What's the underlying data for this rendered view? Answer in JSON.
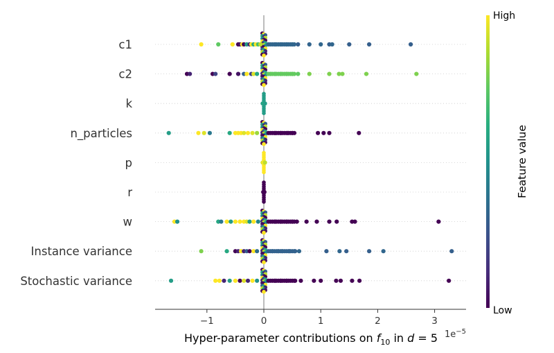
{
  "chart_data": {
    "type": "scatter",
    "subtype": "shap-beeswarm",
    "title": "",
    "xlabel": "Hyper-parameter contributions on f_10 in d = 5",
    "xlabel_parts": {
      "prefix": "Hyper-parameter contributions on ",
      "f": "f",
      "f_sub": "10",
      "mid": " in ",
      "d": "d",
      "eq": " = ",
      "val": "5"
    },
    "x_exponent_label": "1e−5",
    "x_exponent": {
      "base": "1e",
      "power": "−5"
    },
    "xlim": [
      -1.9,
      3.55
    ],
    "xticks": [
      -1,
      0,
      1,
      2,
      3
    ],
    "xtick_labels": [
      "−1",
      "0",
      "1",
      "2",
      "3"
    ],
    "features": [
      "c1",
      "c2",
      "k",
      "n_particles",
      "p",
      "r",
      "w",
      "Instance variance",
      "Stochastic variance"
    ],
    "colorbar": {
      "title": "Feature value",
      "high_label": "High",
      "low_label": "Low",
      "colormap": "viridis"
    },
    "series": [
      {
        "name": "c1",
        "points": [
          [
            -1.1,
            1.0
          ],
          [
            -0.8,
            0.75
          ],
          [
            -0.55,
            1.0
          ],
          [
            -0.45,
            0.0
          ],
          [
            -0.42,
            0.05
          ],
          [
            -0.38,
            1.0
          ],
          [
            -0.35,
            0.0
          ],
          [
            -0.3,
            0.55
          ],
          [
            -0.25,
            0.1
          ],
          [
            -0.22,
            1.0
          ],
          [
            -0.18,
            0.6
          ],
          [
            -0.14,
            1.0
          ],
          [
            -0.1,
            0.7
          ],
          [
            -0.06,
            0.9
          ],
          [
            0.2,
            0.35
          ],
          [
            0.3,
            0.35
          ],
          [
            0.4,
            0.3
          ],
          [
            0.5,
            0.35
          ],
          [
            0.6,
            0.3
          ],
          [
            0.8,
            0.32
          ],
          [
            1.0,
            0.33
          ],
          [
            1.15,
            0.3
          ],
          [
            1.2,
            0.33
          ],
          [
            1.5,
            0.3
          ],
          [
            1.85,
            0.3
          ],
          [
            2.58,
            0.3
          ]
        ]
      },
      {
        "name": "c2",
        "points": [
          [
            -1.35,
            0.0
          ],
          [
            -1.3,
            0.1
          ],
          [
            -0.9,
            0.0
          ],
          [
            -0.85,
            0.2
          ],
          [
            -0.6,
            0.0
          ],
          [
            -0.45,
            0.05
          ],
          [
            -0.35,
            0.3
          ],
          [
            -0.3,
            1.0
          ],
          [
            -0.22,
            0.2
          ],
          [
            -0.18,
            0.95
          ],
          [
            -0.12,
            0.6
          ],
          [
            0.12,
            0.8
          ],
          [
            0.2,
            0.75
          ],
          [
            0.3,
            0.75
          ],
          [
            0.4,
            0.75
          ],
          [
            0.5,
            0.75
          ],
          [
            0.6,
            0.75
          ],
          [
            0.8,
            0.8
          ],
          [
            1.15,
            0.8
          ],
          [
            1.32,
            0.8
          ],
          [
            1.38,
            0.8
          ],
          [
            1.8,
            0.8
          ],
          [
            2.68,
            0.8
          ]
        ]
      },
      {
        "name": "k",
        "points": [
          [
            -0.02,
            0.55
          ],
          [
            0.0,
            0.6
          ],
          [
            0.02,
            0.55
          ]
        ]
      },
      {
        "name": "n_particles",
        "points": [
          [
            -1.67,
            0.55
          ],
          [
            -1.15,
            1.0
          ],
          [
            -1.05,
            0.95
          ],
          [
            -0.95,
            0.4
          ],
          [
            -0.6,
            0.6
          ],
          [
            -0.5,
            1.0
          ],
          [
            -0.45,
            1.0
          ],
          [
            -0.4,
            1.0
          ],
          [
            -0.35,
            0.95
          ],
          [
            -0.28,
            1.0
          ],
          [
            -0.2,
            0.95
          ],
          [
            -0.12,
            0.85
          ],
          [
            0.2,
            0.0
          ],
          [
            0.3,
            0.0
          ],
          [
            0.42,
            0.0
          ],
          [
            0.5,
            0.0
          ],
          [
            0.95,
            0.0
          ],
          [
            1.05,
            0.0
          ],
          [
            1.15,
            0.0
          ],
          [
            1.67,
            0.0
          ]
        ]
      },
      {
        "name": "p",
        "points": [
          [
            -0.02,
            0.95
          ],
          [
            0.0,
            1.0
          ],
          [
            0.02,
            0.9
          ]
        ]
      },
      {
        "name": "r",
        "points": [
          [
            -0.01,
            0.0
          ],
          [
            0.0,
            0.0
          ],
          [
            0.01,
            0.0
          ]
        ]
      },
      {
        "name": "w",
        "points": [
          [
            -1.57,
            1.0
          ],
          [
            -1.52,
            0.5
          ],
          [
            -0.8,
            0.6
          ],
          [
            -0.75,
            0.4
          ],
          [
            -0.65,
            1.0
          ],
          [
            -0.58,
            0.55
          ],
          [
            -0.5,
            1.0
          ],
          [
            -0.42,
            1.0
          ],
          [
            -0.35,
            1.0
          ],
          [
            -0.3,
            0.95
          ],
          [
            -0.25,
            0.55
          ],
          [
            -0.18,
            1.0
          ],
          [
            -0.1,
            0.45
          ],
          [
            0.2,
            0.0
          ],
          [
            0.3,
            0.0
          ],
          [
            0.4,
            0.0
          ],
          [
            0.5,
            0.0
          ],
          [
            0.58,
            0.0
          ],
          [
            0.75,
            0.0
          ],
          [
            0.93,
            0.0
          ],
          [
            1.15,
            0.0
          ],
          [
            1.28,
            0.0
          ],
          [
            1.55,
            0.0
          ],
          [
            1.6,
            0.0
          ],
          [
            3.07,
            0.0
          ]
        ]
      },
      {
        "name": "Instance variance",
        "points": [
          [
            -1.1,
            0.8
          ],
          [
            -0.65,
            0.6
          ],
          [
            -0.5,
            0.0
          ],
          [
            -0.45,
            0.1
          ],
          [
            -0.4,
            1.0
          ],
          [
            -0.35,
            0.1
          ],
          [
            -0.3,
            0.3
          ],
          [
            -0.25,
            0.0
          ],
          [
            -0.18,
            1.0
          ],
          [
            -0.12,
            0.35
          ],
          [
            0.15,
            0.3
          ],
          [
            0.25,
            0.3
          ],
          [
            0.32,
            0.35
          ],
          [
            0.45,
            0.3
          ],
          [
            0.55,
            0.3
          ],
          [
            0.62,
            0.33
          ],
          [
            1.1,
            0.3
          ],
          [
            1.33,
            0.33
          ],
          [
            1.45,
            0.3
          ],
          [
            1.85,
            0.3
          ],
          [
            2.1,
            0.33
          ],
          [
            3.3,
            0.3
          ]
        ]
      },
      {
        "name": "Stochastic variance",
        "points": [
          [
            -1.63,
            0.55
          ],
          [
            -0.85,
            1.0
          ],
          [
            -0.78,
            1.0
          ],
          [
            -0.7,
            0.1
          ],
          [
            -0.6,
            0.55
          ],
          [
            -0.5,
            1.0
          ],
          [
            -0.42,
            0.0
          ],
          [
            -0.35,
            0.95
          ],
          [
            -0.28,
            0.1
          ],
          [
            -0.2,
            1.0
          ],
          [
            -0.12,
            0.5
          ],
          [
            0.2,
            0.0
          ],
          [
            0.3,
            0.0
          ],
          [
            0.4,
            0.0
          ],
          [
            0.55,
            0.0
          ],
          [
            0.65,
            0.0
          ],
          [
            0.88,
            0.0
          ],
          [
            1.0,
            0.0
          ],
          [
            1.27,
            0.0
          ],
          [
            1.35,
            0.0
          ],
          [
            1.55,
            0.0
          ],
          [
            1.68,
            0.0
          ],
          [
            3.25,
            0.0
          ]
        ]
      }
    ]
  }
}
